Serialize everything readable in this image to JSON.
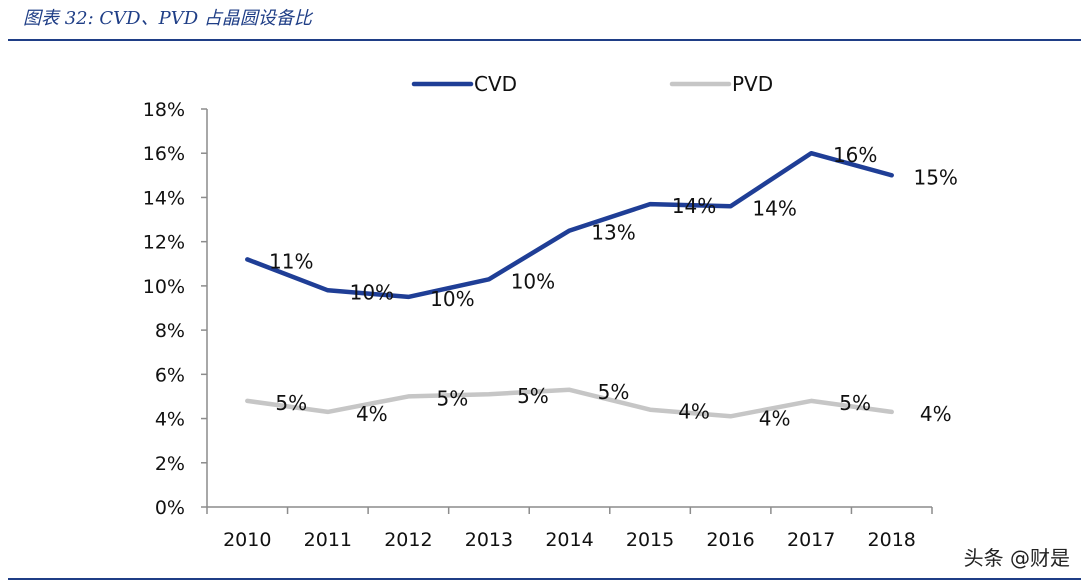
{
  "caption": "图表 32:  CVD、PVD 占晶圆设备比",
  "watermark": "头条 @财是",
  "chart_data": {
    "type": "line",
    "categories": [
      "2010",
      "2011",
      "2012",
      "2013",
      "2014",
      "2015",
      "2016",
      "2017",
      "2018"
    ],
    "ylim": [
      0,
      18
    ],
    "yticks": [
      "0%",
      "2%",
      "4%",
      "6%",
      "8%",
      "10%",
      "12%",
      "14%",
      "16%",
      "18%"
    ],
    "legend_position": "top",
    "grid": false,
    "series": [
      {
        "name": "CVD",
        "color": "#1f3e96",
        "values": [
          11.2,
          9.8,
          9.5,
          10.3,
          12.5,
          13.7,
          13.6,
          16.0,
          15.0
        ],
        "labels": [
          "11%",
          "10%",
          "10%",
          "10%",
          "13%",
          "14%",
          "14%",
          "16%",
          "15%"
        ]
      },
      {
        "name": "PVD",
        "color": "#c6c6c6",
        "values": [
          4.8,
          4.3,
          5.0,
          5.1,
          5.3,
          4.4,
          4.1,
          4.8,
          4.3
        ],
        "labels": [
          "5%",
          "4%",
          "5%",
          "5%",
          "5%",
          "4%",
          "4%",
          "5%",
          "4%"
        ]
      }
    ]
  }
}
